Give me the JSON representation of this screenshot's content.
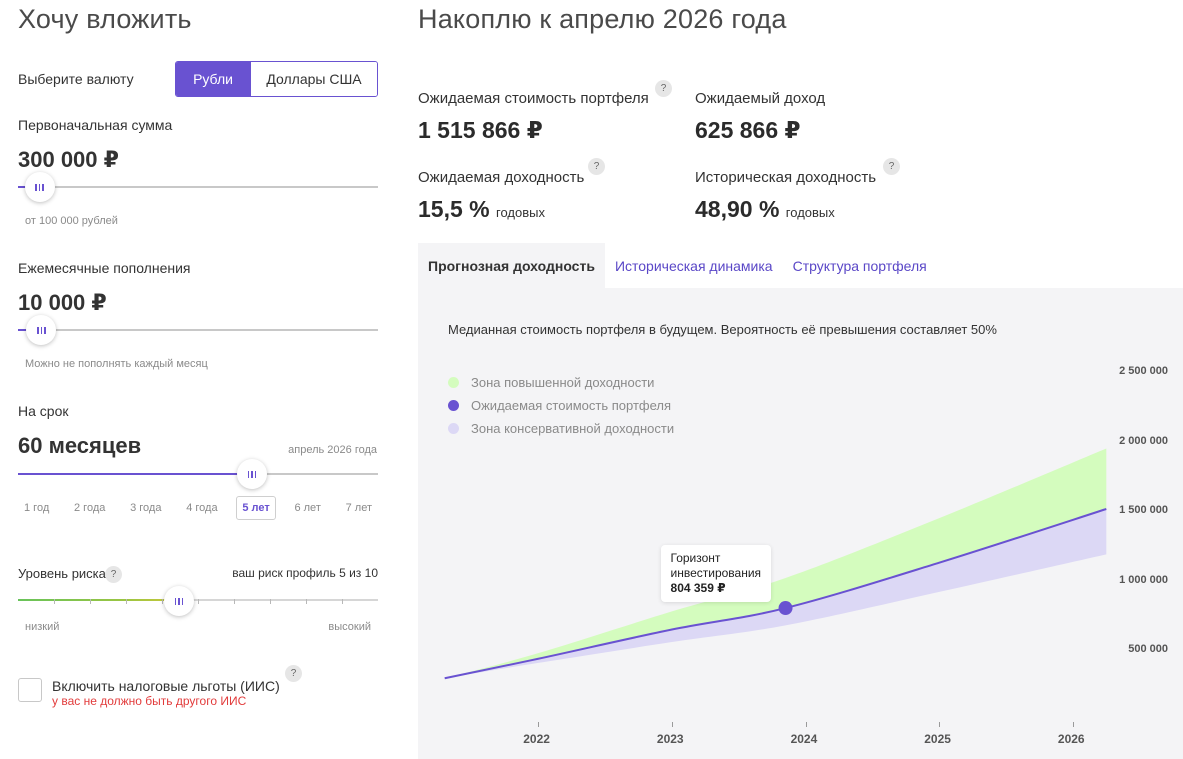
{
  "left": {
    "title": "Хочу вложить",
    "currency": {
      "label": "Выберите валюту",
      "options": [
        "Рубли",
        "Доллары США"
      ],
      "selected": "Рубли"
    },
    "initial": {
      "label": "Первоначальная сумма",
      "value": "300 000 ₽",
      "hint": "от 100 000 рублей",
      "slider_fraction": 0.06
    },
    "monthly": {
      "label": "Ежемесячные пополнения",
      "value": "10 000 ₽",
      "hint": "Можно не пополнять каждый месяц",
      "slider_fraction": 0.065
    },
    "term": {
      "label": "На срок",
      "value": "60 месяцев",
      "end_date": "апрель 2026 года",
      "slider_fraction": 0.65,
      "options": [
        "1 год",
        "2 года",
        "3 года",
        "4 года",
        "5 лет",
        "6 лет",
        "7 лет"
      ],
      "selected_index": 4
    },
    "risk": {
      "label": "Уровень риска",
      "profile_text": "ваш риск профиль 5 из 10",
      "low": "низкий",
      "high": "высокий",
      "level": 5,
      "max": 10
    },
    "tax": {
      "label": "Включить налоговые льготы (ИИС)",
      "warning": "у вас не должно быть другого ИИС",
      "checked": false
    }
  },
  "right": {
    "title": "Накоплю к апрелю 2026 года",
    "stats": {
      "portfolio_label": "Ожидаемая стоимость портфеля",
      "portfolio_value": "1 515 866 ₽",
      "income_label": "Ожидаемый доход",
      "income_value": "625 866 ₽",
      "yield_label": "Ожидаемая доходность",
      "yield_value": "15,5 %",
      "yield_unit": "годовых",
      "hist_label": "Историческая доходность",
      "hist_value": "48,90 %",
      "hist_unit": "годовых"
    },
    "tabs": [
      "Прогнозная доходность",
      "Историческая динамика",
      "Структура портфеля"
    ],
    "active_tab": 0,
    "chart_caption": "Медианная стоимость портфеля в будущем. Вероятность её превышения составляет 50%",
    "tooltip": {
      "line1": "Горизонт",
      "line2": "инвестирования",
      "value": "804 359 ₽"
    }
  },
  "colors": {
    "accent": "#6952d1",
    "upper_zone": "#d4fcbe",
    "lower_zone": "#dcd8f5",
    "warning": "#e23b3b",
    "panel_bg": "#f4f4f6"
  },
  "chart_data": {
    "type": "area",
    "title": "",
    "xlabel": "",
    "ylabel": "",
    "x_ticks": [
      "2022",
      "2023",
      "2024",
      "2025",
      "2026"
    ],
    "y_ticks": [
      "500 000",
      "1 000 000",
      "1 500 000",
      "2 000 000",
      "2 500 000"
    ],
    "xlim": [
      2021.25,
      2026.3
    ],
    "ylim": [
      0,
      2500000
    ],
    "legend": {
      "position": "top-left",
      "entries": [
        {
          "name": "Зона повышенной доходности",
          "color": "#d4fcbe"
        },
        {
          "name": "Ожидаемая стоимость портфеля",
          "color": "#6952d1"
        },
        {
          "name": "Зона консервативной доходности",
          "color": "#dcd8f5"
        }
      ]
    },
    "x": [
      2021.3,
      2022.0,
      2023.0,
      2023.85,
      2025.0,
      2026.25
    ],
    "series": [
      {
        "name": "Зона повышенной доходности",
        "values": [
          300000,
          480000,
          780000,
          1020000,
          1450000,
          1950000
        ]
      },
      {
        "name": "Ожидаемая стоимость портфеля",
        "values": [
          300000,
          440000,
          650000,
          804359,
          1130000,
          1515866
        ]
      },
      {
        "name": "Зона консервативной доходности",
        "values": [
          300000,
          410000,
          560000,
          680000,
          920000,
          1190000
        ]
      }
    ],
    "marker": {
      "x": 2023.85,
      "y": 804359
    },
    "grid": false
  }
}
